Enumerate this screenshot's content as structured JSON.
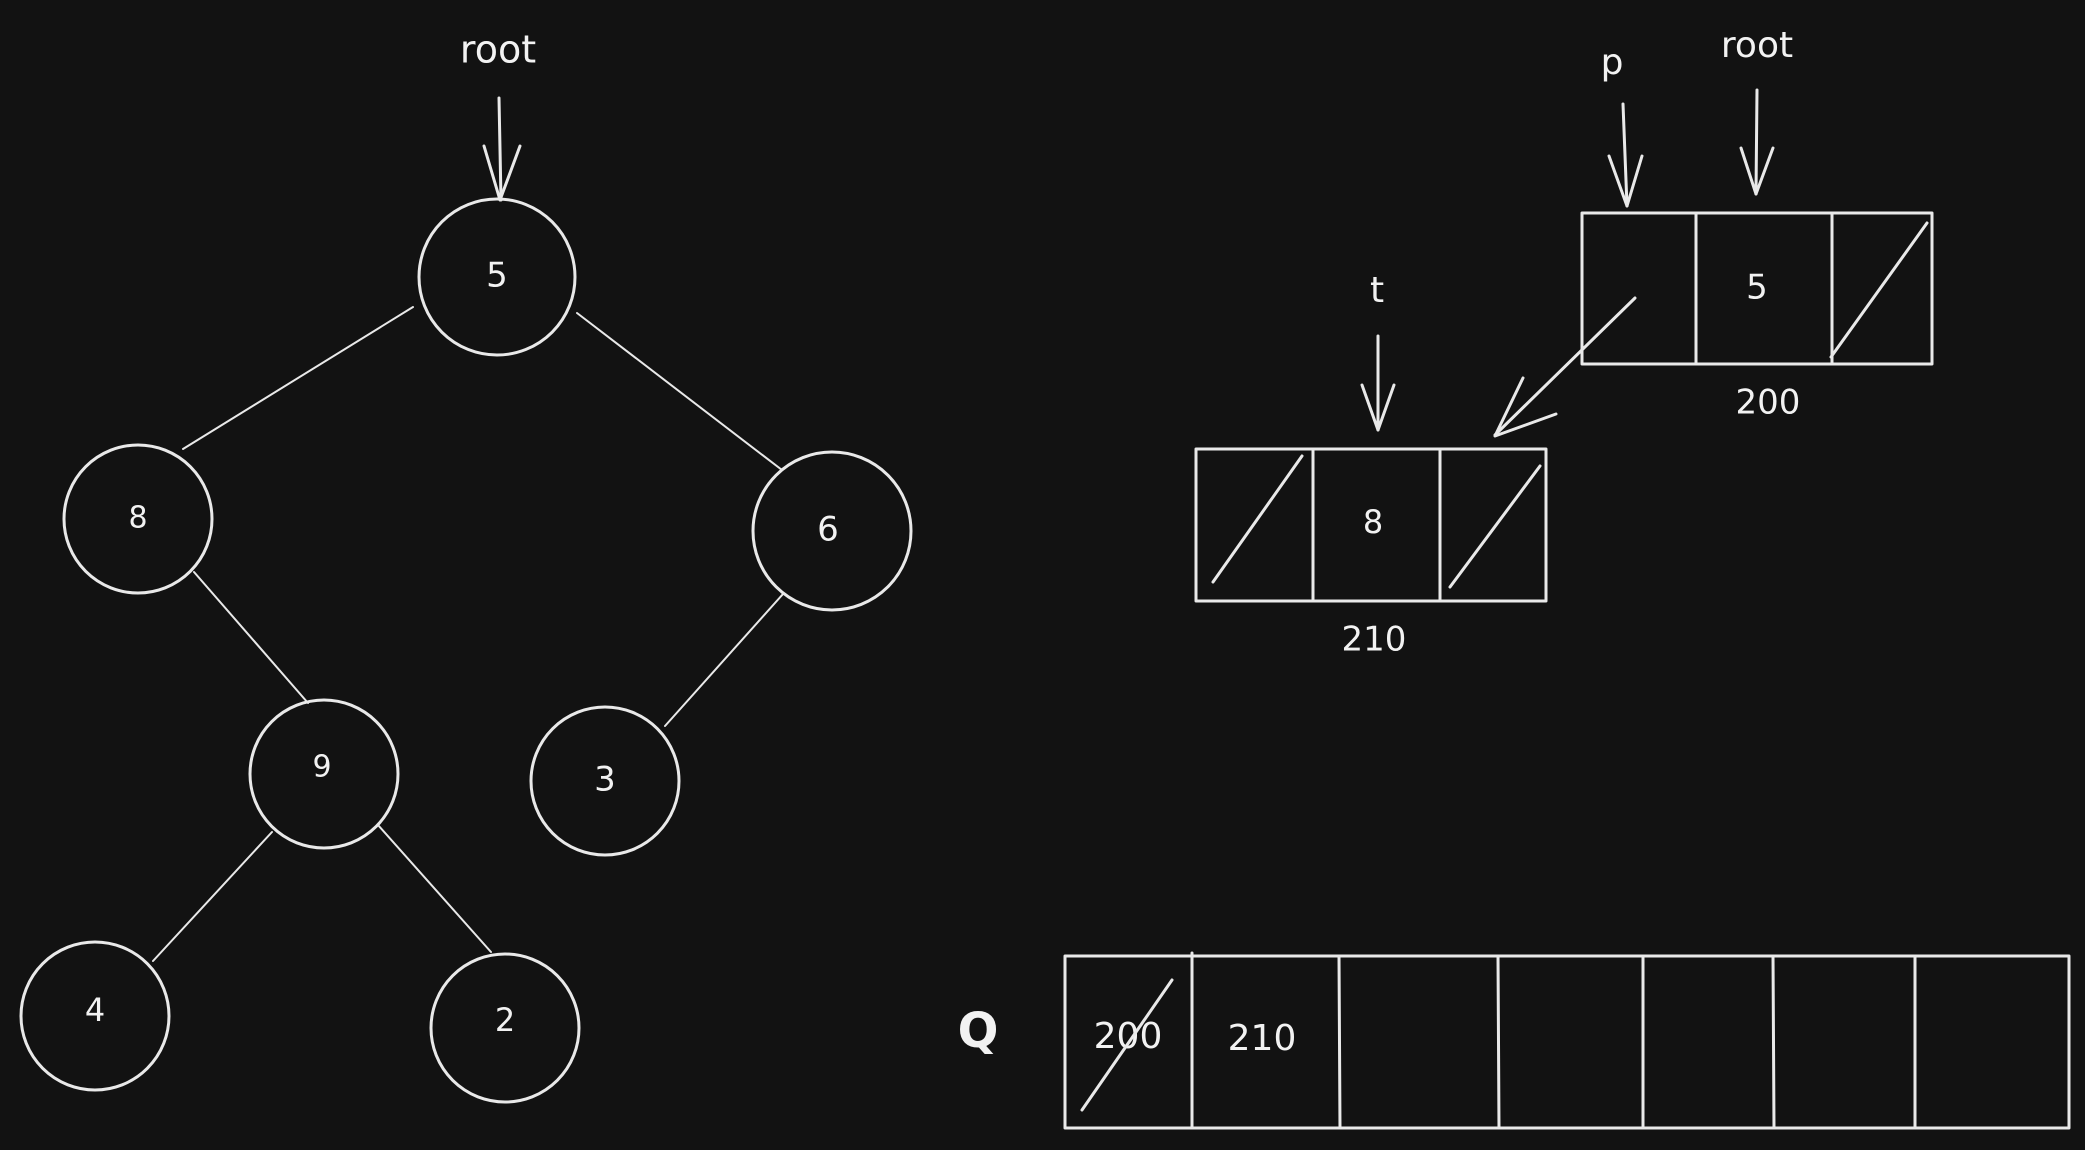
{
  "tree": {
    "root_pointer_label": "root",
    "nodes": [
      {
        "id": "5",
        "label": "5"
      },
      {
        "id": "8",
        "label": "8"
      },
      {
        "id": "6",
        "label": "6"
      },
      {
        "id": "9",
        "label": "9"
      },
      {
        "id": "3",
        "label": "3"
      },
      {
        "id": "4",
        "label": "4"
      },
      {
        "id": "2",
        "label": "2"
      }
    ],
    "edges": [
      [
        "5",
        "8"
      ],
      [
        "5",
        "6"
      ],
      [
        "8",
        "9"
      ],
      [
        "6",
        "3"
      ],
      [
        "9",
        "4"
      ],
      [
        "9",
        "2"
      ]
    ]
  },
  "linked_nodes": {
    "node_a": {
      "value": "5",
      "address": "200",
      "pointer_labels": [
        "p",
        "root"
      ]
    },
    "node_b": {
      "value": "8",
      "address": "210",
      "pointer_labels": [
        "t"
      ]
    }
  },
  "queue": {
    "label": "Q",
    "cells": [
      "200",
      "210",
      "",
      "",
      "",
      "",
      ""
    ],
    "crossed_out": [
      true,
      false,
      false,
      false,
      false,
      false,
      false
    ]
  }
}
